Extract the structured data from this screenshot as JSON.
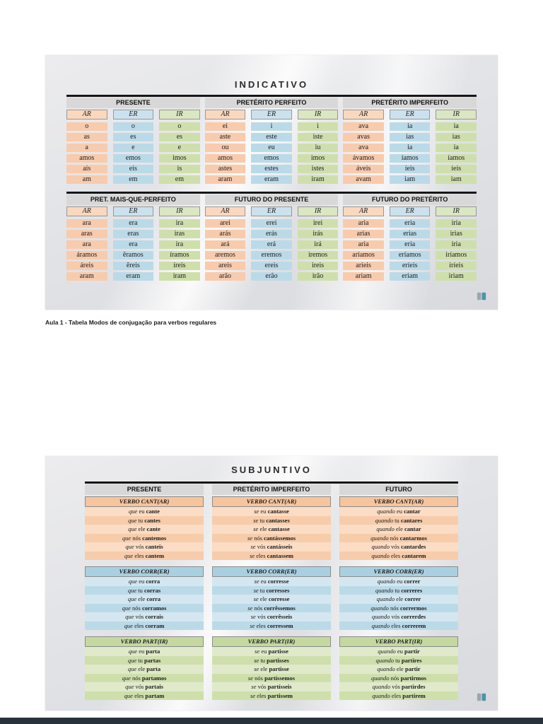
{
  "caption": "Aula 1 - Tabela Modos de conjugação para verbos regulares",
  "colors": {
    "ar": "#F8CBAD",
    "er": "#BBDAE8",
    "ir": "#CFDFAC",
    "section_bar": "#D8D8D8",
    "divider": "#161616",
    "footer": "#28323C"
  },
  "slide1": {
    "title": "INDICATIVO",
    "bands": [
      {
        "sections": [
          {
            "title": "PRESENTE",
            "columns": [
              {
                "label": "AR",
                "tone": "ar",
                "cells": [
                  "o",
                  "as",
                  "a",
                  "amos",
                  "ais",
                  "am"
                ]
              },
              {
                "label": "ER",
                "tone": "er",
                "cells": [
                  "o",
                  "es",
                  "e",
                  "emos",
                  "eis",
                  "em"
                ]
              },
              {
                "label": "IR",
                "tone": "ir",
                "cells": [
                  "o",
                  "es",
                  "e",
                  "imos",
                  "is",
                  "em"
                ]
              }
            ]
          },
          {
            "title": "PRETÉRITO PERFEITO",
            "columns": [
              {
                "label": "AR",
                "tone": "ar",
                "cells": [
                  "ei",
                  "aste",
                  "ou",
                  "amos",
                  "astes",
                  "aram"
                ]
              },
              {
                "label": "ER",
                "tone": "er",
                "cells": [
                  "i",
                  "este",
                  "eu",
                  "emos",
                  "estes",
                  "eram"
                ]
              },
              {
                "label": "IR",
                "tone": "ir",
                "cells": [
                  "i",
                  "iste",
                  "iu",
                  "imos",
                  "istes",
                  "iram"
                ]
              }
            ]
          },
          {
            "title": "PRETÉRITO IMPERFEITO",
            "columns": [
              {
                "label": "AR",
                "tone": "ar",
                "cells": [
                  "ava",
                  "avas",
                  "ava",
                  "ávamos",
                  "áveis",
                  "avam"
                ]
              },
              {
                "label": "ER",
                "tone": "er",
                "cells": [
                  "ia",
                  "ias",
                  "ia",
                  "íamos",
                  "íeis",
                  "iam"
                ]
              },
              {
                "label": "IR",
                "tone": "ir",
                "cells": [
                  "ia",
                  "ias",
                  "ia",
                  "íamos",
                  "íeis",
                  "iam"
                ]
              }
            ]
          }
        ]
      },
      {
        "sections": [
          {
            "title": "PRET. MAIS-QUE-PERFEITO",
            "columns": [
              {
                "label": "AR",
                "tone": "ar",
                "cells": [
                  "ara",
                  "aras",
                  "ara",
                  "áramos",
                  "áreis",
                  "aram"
                ]
              },
              {
                "label": "ER",
                "tone": "er",
                "cells": [
                  "era",
                  "eras",
                  "era",
                  "êramos",
                  "êreis",
                  "eram"
                ]
              },
              {
                "label": "IR",
                "tone": "ir",
                "cells": [
                  "ira",
                  "iras",
                  "ira",
                  "íramos",
                  "íreis",
                  "iram"
                ]
              }
            ]
          },
          {
            "title": "FUTURO DO PRESENTE",
            "columns": [
              {
                "label": "AR",
                "tone": "ar",
                "cells": [
                  "arei",
                  "arás",
                  "ará",
                  "aremos",
                  "areis",
                  "arão"
                ]
              },
              {
                "label": "ER",
                "tone": "er",
                "cells": [
                  "erei",
                  "erás",
                  "erá",
                  "eremos",
                  "ereis",
                  "erão"
                ]
              },
              {
                "label": "IR",
                "tone": "ir",
                "cells": [
                  "irei",
                  "irás",
                  "irá",
                  "iremos",
                  "ireis",
                  "irão"
                ]
              }
            ]
          },
          {
            "title": "FUTURO DO PRETÉRITO",
            "columns": [
              {
                "label": "AR",
                "tone": "ar",
                "cells": [
                  "aria",
                  "arias",
                  "aria",
                  "aríamos",
                  "aríeis",
                  "ariam"
                ]
              },
              {
                "label": "ER",
                "tone": "er",
                "cells": [
                  "eria",
                  "erias",
                  "eria",
                  "eríamos",
                  "eríeis",
                  "eriam"
                ]
              },
              {
                "label": "IR",
                "tone": "ir",
                "cells": [
                  "iria",
                  "irias",
                  "iria",
                  "iríamos",
                  "iríeis",
                  "iriam"
                ]
              }
            ]
          }
        ]
      }
    ]
  },
  "slide2": {
    "title": "SUBJUNTIVO",
    "columns": [
      {
        "title": "PRESENTE",
        "blocks": [
          {
            "header": "VERBO CANT(AR)",
            "tone": "ar",
            "rows": [
              [
                "que",
                "eu",
                "cante"
              ],
              [
                "que",
                "tu",
                "cantes"
              ],
              [
                "que",
                "ele",
                "cante"
              ],
              [
                "que",
                "nós",
                "cantemos"
              ],
              [
                "que",
                "vós",
                "canteis"
              ],
              [
                "que",
                "eles",
                "cantem"
              ]
            ]
          },
          {
            "header": "VERBO CORR(ER)",
            "tone": "er",
            "rows": [
              [
                "que",
                "eu",
                "corra"
              ],
              [
                "que",
                "tu",
                "corras"
              ],
              [
                "que",
                "ele",
                "corra"
              ],
              [
                "que",
                "nós",
                "corramos"
              ],
              [
                "que",
                "vós",
                "corrais"
              ],
              [
                "que",
                "eles",
                "corram"
              ]
            ]
          },
          {
            "header": "VERBO PART(IR)",
            "tone": "ir",
            "rows": [
              [
                "que",
                "eu",
                "parta"
              ],
              [
                "que",
                "tu",
                "partas"
              ],
              [
                "que",
                "ele",
                "parta"
              ],
              [
                "que",
                "nós",
                "partamos"
              ],
              [
                "que",
                "vós",
                "partais"
              ],
              [
                "que",
                "eles",
                "partam"
              ]
            ]
          }
        ]
      },
      {
        "title": "PRETÉRITO IMPERFEITO",
        "blocks": [
          {
            "header": "VERBO CANT(AR)",
            "tone": "ar",
            "rows": [
              [
                "se",
                "eu",
                "cantasse"
              ],
              [
                "se",
                "tu",
                "cantasses"
              ],
              [
                "se",
                "ele",
                "cantasse"
              ],
              [
                "se",
                "nós",
                "cantássemos"
              ],
              [
                "se",
                "vós",
                "cantásseis"
              ],
              [
                "se",
                "eles",
                "cantassem"
              ]
            ]
          },
          {
            "header": "VERBO CORR(ER)",
            "tone": "er",
            "rows": [
              [
                "se",
                "eu",
                "corresse"
              ],
              [
                "se",
                "tu",
                "corresses"
              ],
              [
                "se",
                "ele",
                "corresse"
              ],
              [
                "se",
                "nós",
                "corrêssemos"
              ],
              [
                "se",
                "vós",
                "corrêsseis"
              ],
              [
                "se",
                "eles",
                "corressem"
              ]
            ]
          },
          {
            "header": "VERBO PART(IR)",
            "tone": "ir",
            "rows": [
              [
                "se",
                "eu",
                "partisse"
              ],
              [
                "se",
                "tu",
                "partisses"
              ],
              [
                "se",
                "ele",
                "partisse"
              ],
              [
                "se",
                "nós",
                "partíssemos"
              ],
              [
                "se",
                "vós",
                "partísseis"
              ],
              [
                "se",
                "eles",
                "partissem"
              ]
            ]
          }
        ]
      },
      {
        "title": "FUTURO",
        "blocks": [
          {
            "header": "VERBO CANT(AR)",
            "tone": "ar",
            "rows": [
              [
                "quando",
                "eu",
                "cantar"
              ],
              [
                "quando",
                "tu",
                "cantares"
              ],
              [
                "quando",
                "ele",
                "cantar"
              ],
              [
                "quando",
                "nós",
                "cantarmos"
              ],
              [
                "quando",
                "vós",
                "cantardes"
              ],
              [
                "quando",
                "eles",
                "cantarem"
              ]
            ]
          },
          {
            "header": "VERBO CORR(ER)",
            "tone": "er",
            "rows": [
              [
                "quando",
                "eu",
                "correr"
              ],
              [
                "quando",
                "tu",
                "correres"
              ],
              [
                "quando",
                "ele",
                "correr"
              ],
              [
                "quando",
                "nós",
                "corrermos"
              ],
              [
                "quando",
                "vós",
                "correrdes"
              ],
              [
                "quando",
                "eles",
                "correrem"
              ]
            ]
          },
          {
            "header": "VERBO PART(IR)",
            "tone": "ir",
            "rows": [
              [
                "quando",
                "eu",
                "partir"
              ],
              [
                "quando",
                "tu",
                "partires"
              ],
              [
                "quando",
                "ele",
                "partir"
              ],
              [
                "quando",
                "nós",
                "partirmos"
              ],
              [
                "quando",
                "vós",
                "partirdes"
              ],
              [
                "quando",
                "eles",
                "partirem"
              ]
            ]
          }
        ]
      }
    ]
  }
}
